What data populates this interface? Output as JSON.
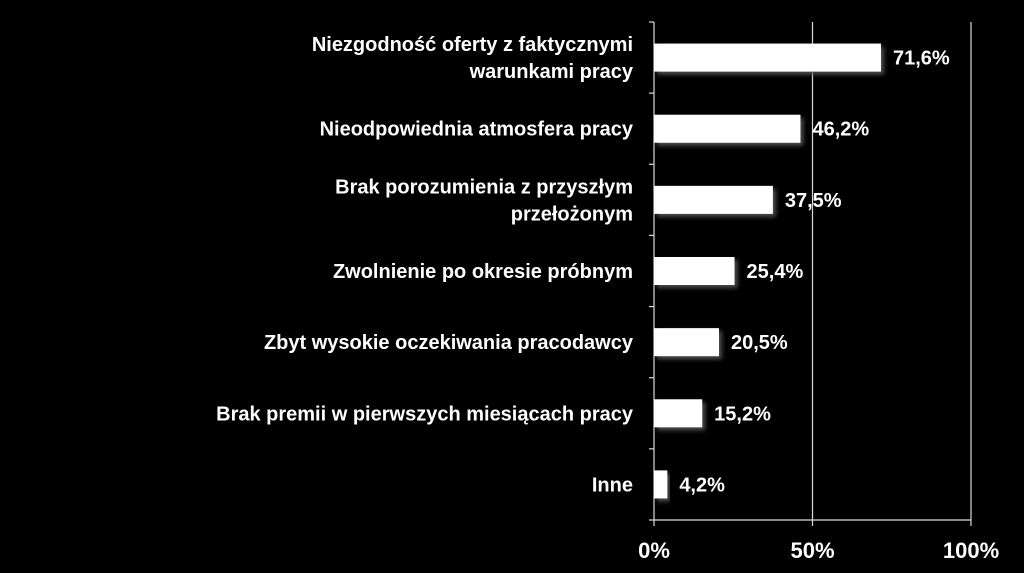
{
  "chart_data": {
    "type": "bar",
    "orientation": "horizontal",
    "categories": [
      [
        "Niezgodność oferty z faktycznymi",
        "warunkami pracy"
      ],
      [
        "Nieodpowiednia atmosfera pracy"
      ],
      [
        "Brak porozumienia z przyszłym",
        "przełożonym"
      ],
      [
        "Zwolnienie po okresie próbnym"
      ],
      [
        "Zbyt wysokie oczekiwania pracodawcy"
      ],
      [
        "Brak premii w pierwszych miesiącach pracy"
      ],
      [
        "Inne"
      ]
    ],
    "values": [
      71.6,
      46.2,
      37.5,
      25.4,
      20.5,
      15.2,
      4.2
    ],
    "value_labels": [
      "71,6%",
      "46,2%",
      "37,5%",
      "25,4%",
      "20,5%",
      "15,2%",
      "4,2%"
    ],
    "xlim": [
      0,
      100
    ],
    "xticks": [
      0,
      50,
      100
    ],
    "xtick_labels": [
      "0%",
      "50%",
      "100%"
    ],
    "grid": "vertical major lines",
    "background": "#000000",
    "bar_color": "#ffffff",
    "text_color": "#ffffff",
    "axis_color": "#d9d9d9"
  }
}
